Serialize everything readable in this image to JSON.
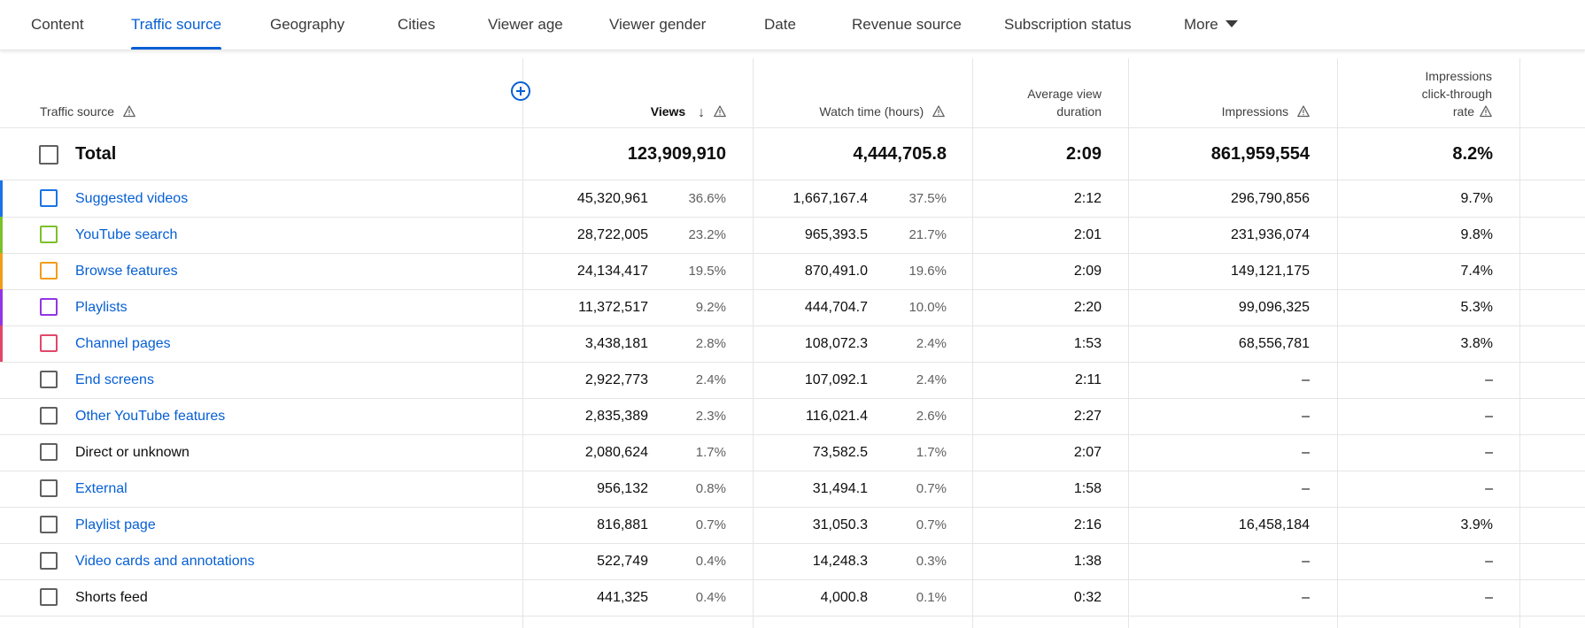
{
  "tabs": [
    {
      "label": "Content",
      "active": false
    },
    {
      "label": "Traffic source",
      "active": true
    },
    {
      "label": "Geography",
      "active": false
    },
    {
      "label": "Cities",
      "active": false
    },
    {
      "label": "Viewer age",
      "active": false
    },
    {
      "label": "Viewer gender",
      "active": false
    },
    {
      "label": "Date",
      "active": false
    },
    {
      "label": "Revenue source",
      "active": false
    },
    {
      "label": "Subscription status",
      "active": false
    },
    {
      "label": "More",
      "active": false
    }
  ],
  "colors": {
    "accent": "#065fd4",
    "stripes": [
      "#1a73e8",
      "#7cc02a",
      "#f29d1a",
      "#9334e6",
      "#e2476a"
    ]
  },
  "columns": {
    "traffic_source": "Traffic source",
    "views": "Views",
    "watch_time": "Watch time (hours)",
    "avg_view_duration": [
      "Average view",
      "duration"
    ],
    "impressions": "Impressions",
    "ctr": [
      "Impressions",
      "click-through",
      "rate"
    ]
  },
  "total": {
    "label": "Total",
    "views": "123,909,910",
    "watch_time": "4,444,705.8",
    "avg_view_duration": "2:09",
    "impressions": "861,959,554",
    "ctr": "8.2%"
  },
  "rows": [
    {
      "source": "Suggested videos",
      "link": true,
      "views": "45,320,961",
      "views_pct": "36.6%",
      "watch_time": "1,667,167.4",
      "watch_pct": "37.5%",
      "avg": "2:12",
      "impressions": "296,790,856",
      "ctr": "9.7%"
    },
    {
      "source": "YouTube search",
      "link": true,
      "views": "28,722,005",
      "views_pct": "23.2%",
      "watch_time": "965,393.5",
      "watch_pct": "21.7%",
      "avg": "2:01",
      "impressions": "231,936,074",
      "ctr": "9.8%"
    },
    {
      "source": "Browse features",
      "link": true,
      "views": "24,134,417",
      "views_pct": "19.5%",
      "watch_time": "870,491.0",
      "watch_pct": "19.6%",
      "avg": "2:09",
      "impressions": "149,121,175",
      "ctr": "7.4%"
    },
    {
      "source": "Playlists",
      "link": true,
      "views": "11,372,517",
      "views_pct": "9.2%",
      "watch_time": "444,704.7",
      "watch_pct": "10.0%",
      "avg": "2:20",
      "impressions": "99,096,325",
      "ctr": "5.3%"
    },
    {
      "source": "Channel pages",
      "link": true,
      "views": "3,438,181",
      "views_pct": "2.8%",
      "watch_time": "108,072.3",
      "watch_pct": "2.4%",
      "avg": "1:53",
      "impressions": "68,556,781",
      "ctr": "3.8%"
    },
    {
      "source": "End screens",
      "link": true,
      "views": "2,922,773",
      "views_pct": "2.4%",
      "watch_time": "107,092.1",
      "watch_pct": "2.4%",
      "avg": "2:11",
      "impressions": "–",
      "ctr": "–"
    },
    {
      "source": "Other YouTube features",
      "link": true,
      "views": "2,835,389",
      "views_pct": "2.3%",
      "watch_time": "116,021.4",
      "watch_pct": "2.6%",
      "avg": "2:27",
      "impressions": "–",
      "ctr": "–"
    },
    {
      "source": "Direct or unknown",
      "link": false,
      "views": "2,080,624",
      "views_pct": "1.7%",
      "watch_time": "73,582.5",
      "watch_pct": "1.7%",
      "avg": "2:07",
      "impressions": "–",
      "ctr": "–"
    },
    {
      "source": "External",
      "link": true,
      "views": "956,132",
      "views_pct": "0.8%",
      "watch_time": "31,494.1",
      "watch_pct": "0.7%",
      "avg": "1:58",
      "impressions": "–",
      "ctr": "–"
    },
    {
      "source": "Playlist page",
      "link": true,
      "views": "816,881",
      "views_pct": "0.7%",
      "watch_time": "31,050.3",
      "watch_pct": "0.7%",
      "avg": "2:16",
      "impressions": "16,458,184",
      "ctr": "3.9%"
    },
    {
      "source": "Video cards and annotations",
      "link": true,
      "views": "522,749",
      "views_pct": "0.4%",
      "watch_time": "14,248.3",
      "watch_pct": "0.3%",
      "avg": "1:38",
      "impressions": "–",
      "ctr": "–"
    },
    {
      "source": "Shorts feed",
      "link": false,
      "views": "441,325",
      "views_pct": "0.4%",
      "watch_time": "4,000.8",
      "watch_pct": "0.1%",
      "avg": "0:32",
      "impressions": "–",
      "ctr": "–"
    }
  ]
}
